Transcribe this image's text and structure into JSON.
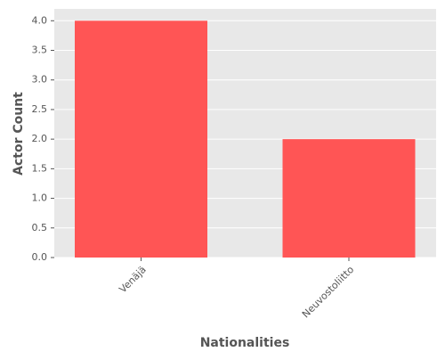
{
  "chart_data": {
    "type": "bar",
    "categories": [
      "Venäjä",
      "Neuvostoliitto"
    ],
    "values": [
      4,
      2
    ],
    "color": "#ff5555",
    "x_label": "Nationalities",
    "y_label": "Actor Count",
    "ylim": [
      0,
      4.2
    ],
    "yticks": [
      {
        "value": 0,
        "label": "0.0"
      },
      {
        "value": 0.5,
        "label": "0.5"
      },
      {
        "value": 1,
        "label": "1.0"
      },
      {
        "value": 1.5,
        "label": "1.5"
      },
      {
        "value": 2,
        "label": "2.0"
      },
      {
        "value": 2.5,
        "label": "2.5"
      },
      {
        "value": 3,
        "label": "3.0"
      },
      {
        "value": 3.5,
        "label": "3.5"
      },
      {
        "value": 4,
        "label": "4.0"
      }
    ],
    "grid": true
  }
}
